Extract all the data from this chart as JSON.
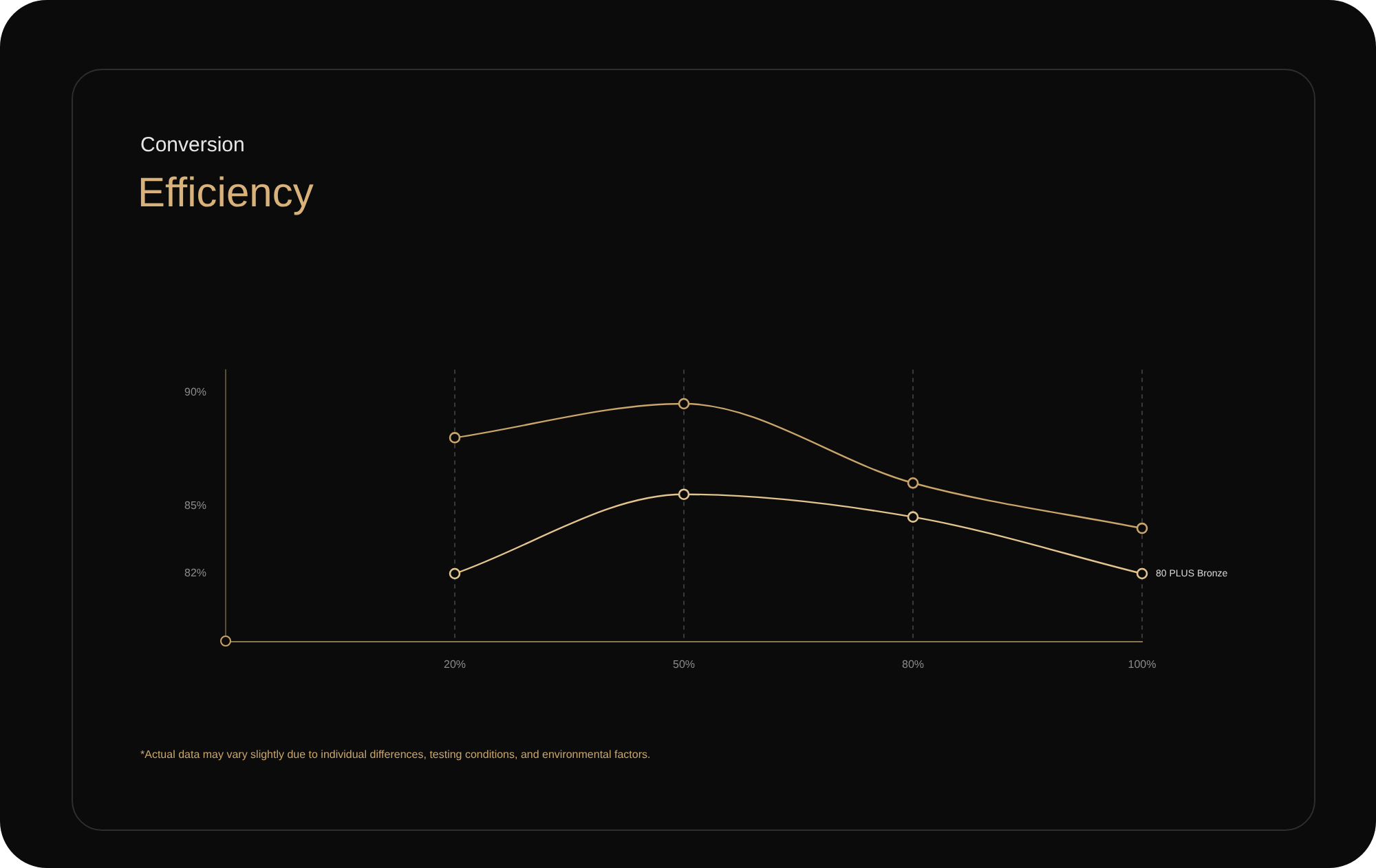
{
  "chart_data": {
    "type": "line",
    "subtitle": "Conversion",
    "title": "Efficiency",
    "categories": [
      null,
      "20%",
      "50%",
      "80%",
      "100%"
    ],
    "series": [
      {
        "color": "#c9a56c",
        "values": [
          null,
          88,
          89.5,
          86,
          84
        ]
      },
      {
        "name": "80 PLUS Bronze",
        "color": "#e3c48e",
        "values": [
          null,
          82,
          85.5,
          84.5,
          82
        ]
      }
    ],
    "ylim": [
      79,
      91
    ],
    "yticks": [
      {
        "value": 82,
        "label": "82%"
      },
      {
        "value": 85,
        "label": "85%"
      },
      {
        "value": 90,
        "label": "90%"
      }
    ],
    "grid": "x",
    "legend": false,
    "marker": "circle",
    "line_style": "solid",
    "annotations": [
      "*Actual data may vary slightly due to individual differences, testing conditions, and environmental factors."
    ]
  }
}
